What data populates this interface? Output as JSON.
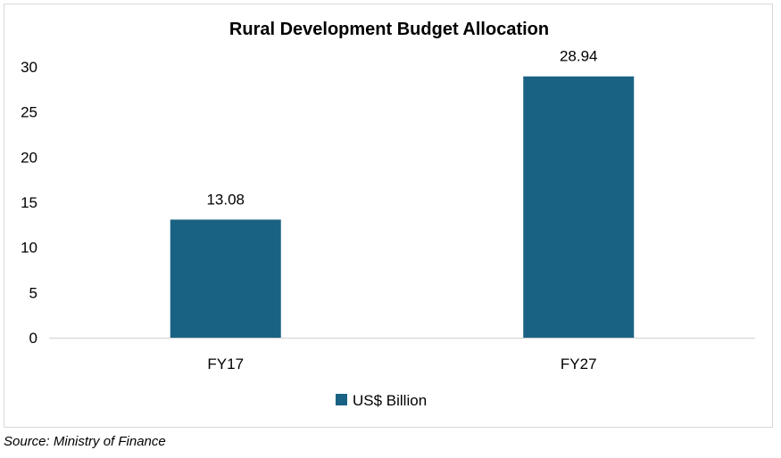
{
  "chart_data": {
    "type": "bar",
    "title": "Rural Development Budget Allocation",
    "categories": [
      "FY17",
      "FY27"
    ],
    "series": [
      {
        "name": "US$ Billion",
        "values": [
          13.08,
          28.94
        ],
        "color": "#1a6284"
      }
    ],
    "data_labels": [
      "13.08",
      "28.94"
    ],
    "xlabel": "",
    "ylabel": "",
    "ylim": [
      0,
      30
    ],
    "yticks": [
      "0",
      "5",
      "10",
      "15",
      "20",
      "25",
      "30"
    ],
    "grid": false,
    "legend_position": "bottom"
  },
  "source": "Source: Ministry of Finance",
  "colors": {
    "bar": "#1a6284",
    "axis": "#d9d9d9",
    "border": "#d9d9d9"
  }
}
